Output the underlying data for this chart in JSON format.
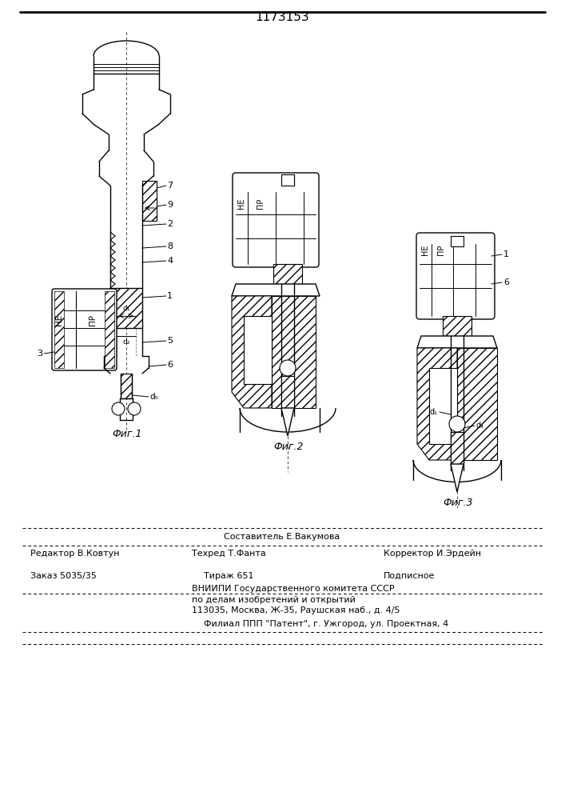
{
  "title": "1173153",
  "bg_color": "#ffffff",
  "fig1_caption": "Фиг.1",
  "fig2_caption": "Фиг.2",
  "fig3_caption": "Фиг.3",
  "footer_sostavitel": "Составитель Е.Вакумова",
  "footer_editor": "Редактор В.Ковтун",
  "footer_techred": "Техред Т.Фанта",
  "footer_korrektor": "Корректор И.Эрдейн",
  "footer_zakaz": "Заказ 5035/35",
  "footer_tirazh": "Тираж 651",
  "footer_podpisnoe": "Подписное",
  "footer_vnipi": "ВНИИПИ Государственного комитета СССР",
  "footer_po_delam": "по делам изобретений и открытий",
  "footer_address": "113035, Москва, Ж-35, Раушская наб., д. 4/5",
  "footer_filial": "Филиал ППП \"Патент\", г. Ужгород, ул. Проектная, 4",
  "NE": "НЕ",
  "PR": "ПР"
}
